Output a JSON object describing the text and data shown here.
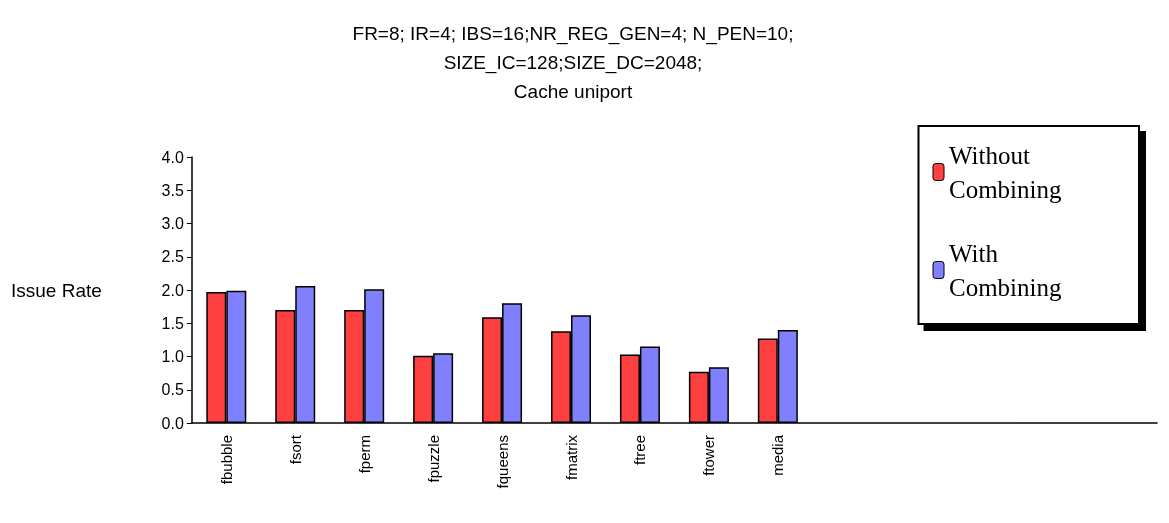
{
  "chart_data": {
    "type": "bar",
    "title": "FR=8; IR=4; IBS=16;NR_REG_GEN=4; N_PEN=10;\nSIZE_IC=128;SIZE_DC=2048;\nCache uniport",
    "ylabel": "Issue Rate",
    "categories": [
      "fbubble",
      "fsort",
      "fperm",
      "fpuzzle",
      "fqueens",
      "fmatrix",
      "ftree",
      "ftower",
      "media",
      null,
      null,
      null,
      null,
      null
    ],
    "series": [
      {
        "name": "Without Combining",
        "color": "#ff4040",
        "values": [
          1.97,
          1.7,
          1.7,
          1.01,
          1.59,
          1.38,
          1.03,
          0.77,
          1.27,
          null,
          null,
          null,
          null,
          null
        ]
      },
      {
        "name": "With Combining",
        "color": "#8080ff",
        "values": [
          1.99,
          2.06,
          2.01,
          1.05,
          1.8,
          1.62,
          1.15,
          0.84,
          1.4,
          null,
          null,
          null,
          null,
          null
        ]
      }
    ],
    "ylim": [
      0,
      4
    ],
    "yticks": [
      {
        "value": 0,
        "label": "0.0"
      },
      0.5,
      {
        "value": 1,
        "label": "1.0"
      },
      1.5,
      {
        "value": 2,
        "label": "2.0"
      },
      2.5,
      {
        "value": 3,
        "label": "3.0"
      },
      3.5,
      {
        "value": 4,
        "label": "4.0"
      }
    ],
    "grid": false,
    "legend": "right"
  }
}
